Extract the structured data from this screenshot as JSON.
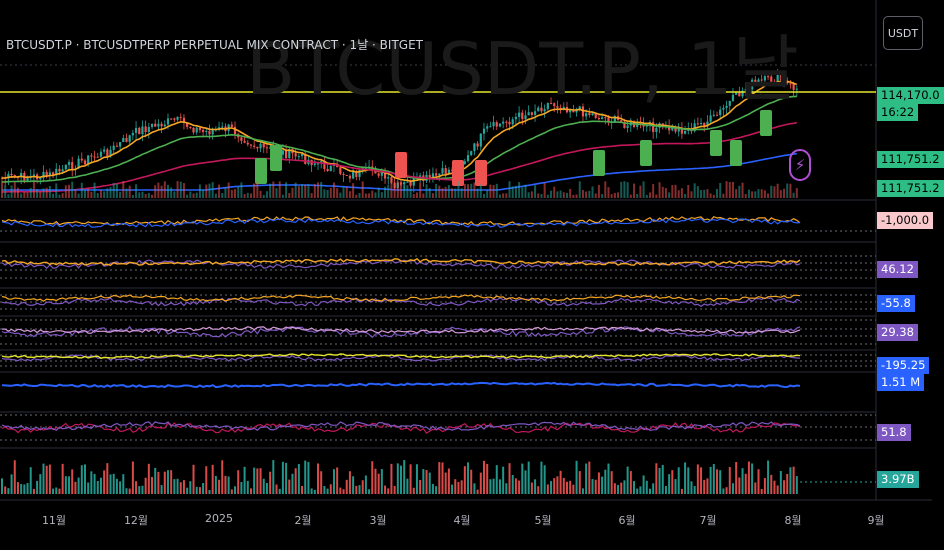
{
  "watermark": "BTCUSDT.P, 1날",
  "title": "BTCUSDT.P · BTCUSDTPERP PERPETUAL MIX CONTRACT · 1날 · BITGET",
  "currency_button": "USDT",
  "alert_icon": "lightning-icon",
  "price_scale": {
    "price_labels": [
      {
        "text": "114,170.0",
        "color": "#2ebd85",
        "text_color": "#000000"
      },
      {
        "text": "16:22",
        "color": "#2ebd85",
        "text_color": "#000000"
      },
      {
        "text": "111,751.2",
        "color": "#2ebd85",
        "text_color": "#000000"
      },
      {
        "text": "111,751.2",
        "color": "#2ebd85",
        "text_color": "#000000"
      }
    ],
    "indicator_labels": [
      {
        "text": "-1,000.0",
        "color": "#f8c8cc",
        "text_color": "#000000"
      },
      {
        "text": "46.12",
        "color": "#7e57c2",
        "text_color": "#ffffff"
      },
      {
        "text": "-55.8",
        "color": "#2962ff",
        "text_color": "#ffffff"
      },
      {
        "text": "29.38",
        "color": "#7e57c2",
        "text_color": "#ffffff"
      },
      {
        "text": "-195.25",
        "color": "#2962ff",
        "text_color": "#ffffff"
      },
      {
        "text": "1.51 M",
        "color": "#2962ff",
        "text_color": "#ffffff"
      },
      {
        "text": "51.8",
        "color": "#7e57c2",
        "text_color": "#ffffff"
      },
      {
        "text": "3.97B",
        "color": "#26a69a",
        "text_color": "#ffffff"
      }
    ]
  },
  "time_axis": [
    "11월",
    "12월",
    "2025",
    "2월",
    "3월",
    "4월",
    "5월",
    "6월",
    "7월",
    "8월",
    "9월"
  ],
  "colors": {
    "up": "#26a69a",
    "down": "#ef5350",
    "horizontal_line": "#e6e62e",
    "ema_orange": "#f5a623",
    "ema_green": "#4caf50",
    "ema_pink": "#c2185b",
    "ema_blue": "#2962ff"
  }
}
